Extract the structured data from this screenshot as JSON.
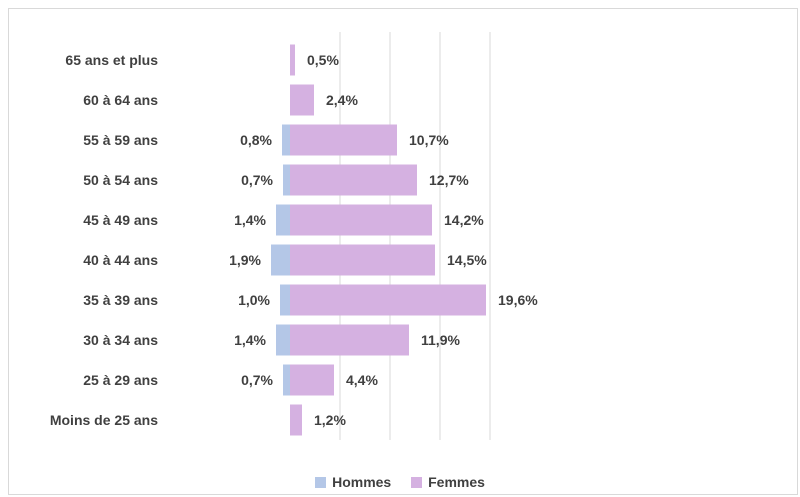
{
  "chart_data": {
    "type": "bar",
    "orientation": "horizontal-diverging",
    "categories": [
      "Moins de 25 ans",
      "25 à 29 ans",
      "30 à 34 ans",
      "35 à 39 ans",
      "40 à 44 ans",
      "45 à 49 ans",
      "50 à 54 ans",
      "55 à 59 ans",
      "60 à 64 ans",
      "65 ans et plus"
    ],
    "series": [
      {
        "name": "Hommes",
        "color": "#b4c7e7",
        "values": [
          null,
          0.7,
          1.4,
          1.0,
          1.9,
          1.4,
          0.7,
          0.8,
          null,
          null
        ],
        "labels": [
          "",
          "0,7%",
          "1,4%",
          "1,0%",
          "1,9%",
          "1,4%",
          "0,7%",
          "0,8%",
          "",
          ""
        ]
      },
      {
        "name": "Femmes",
        "color": "#d5b1e1",
        "values": [
          1.2,
          4.4,
          11.9,
          19.6,
          14.5,
          14.2,
          12.7,
          10.7,
          2.4,
          0.5
        ],
        "labels": [
          "1,2%",
          "4,4%",
          "11,9%",
          "19,6%",
          "14,5%",
          "14,2%",
          "12,7%",
          "10,7%",
          "2,4%",
          "0,5%"
        ]
      }
    ],
    "xlim": [
      -2,
      20
    ],
    "grid": true,
    "legend_position": "bottom"
  }
}
